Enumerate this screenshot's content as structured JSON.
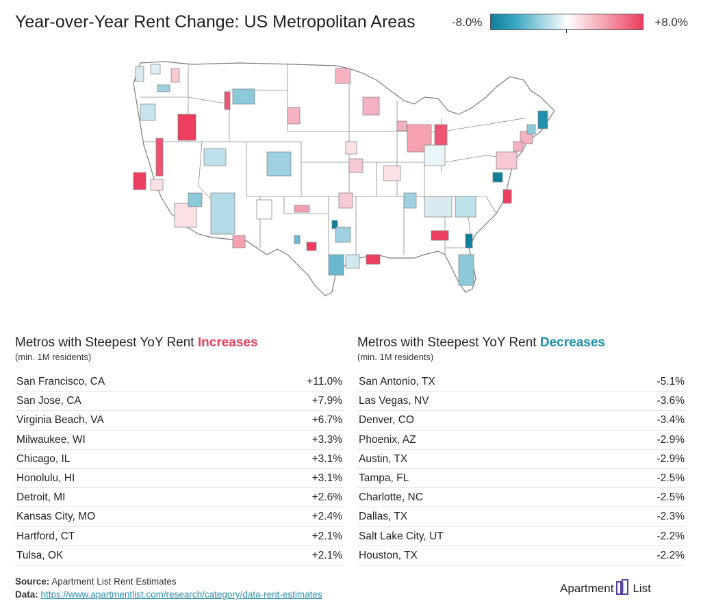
{
  "title": "Year-over-Year Rent Change: US Metropolitan Areas",
  "legend": {
    "min_label": "-8.0%",
    "max_label": "+8.0%",
    "low_color": "#0f7f9b",
    "high_color": "#ec3e5f"
  },
  "increases": {
    "title_prefix": "Metros with Steepest YoY Rent ",
    "title_highlight": "Increases",
    "subtitle": "(min. 1M residents)",
    "rows": [
      {
        "name": "San Francisco, CA",
        "value": "+11.0%"
      },
      {
        "name": "San Jose, CA",
        "value": "+7.9%"
      },
      {
        "name": "Virginia Beach, VA",
        "value": "+6.7%"
      },
      {
        "name": "Milwaukee, WI",
        "value": "+3.3%"
      },
      {
        "name": "Chicago, IL",
        "value": "+3.1%"
      },
      {
        "name": "Honolulu, HI",
        "value": "+3.1%"
      },
      {
        "name": "Detroit, MI",
        "value": "+2.6%"
      },
      {
        "name": "Kansas City, MO",
        "value": "+2.4%"
      },
      {
        "name": "Hartford, CT",
        "value": "+2.1%"
      },
      {
        "name": "Tulsa, OK",
        "value": "+2.1%"
      }
    ]
  },
  "decreases": {
    "title_prefix": "Metros with Steepest YoY Rent ",
    "title_highlight": "Decreases",
    "subtitle": "(min. 1M residents)",
    "rows": [
      {
        "name": "San Antonio, TX",
        "value": "-5.1%"
      },
      {
        "name": "Las Vegas, NV",
        "value": "-3.6%"
      },
      {
        "name": "Denver, CO",
        "value": "-3.4%"
      },
      {
        "name": "Phoenix, AZ",
        "value": "-2.9%"
      },
      {
        "name": "Austin, TX",
        "value": "-2.9%"
      },
      {
        "name": "Tampa, FL",
        "value": "-2.5%"
      },
      {
        "name": "Charlotte, NC",
        "value": "-2.5%"
      },
      {
        "name": "Dallas, TX",
        "value": "-2.3%"
      },
      {
        "name": "Salt Lake City, UT",
        "value": "-2.2%"
      },
      {
        "name": "Houston, TX",
        "value": "-2.2%"
      }
    ]
  },
  "footer": {
    "source_label": "Source:",
    "source_text": "Apartment List Rent Estimates",
    "data_label": "Data:",
    "data_link": "https://www.apartmentlist.com/research/category/data-rent-estimates"
  },
  "logo": {
    "left": "Apartment",
    "right": "List"
  }
}
